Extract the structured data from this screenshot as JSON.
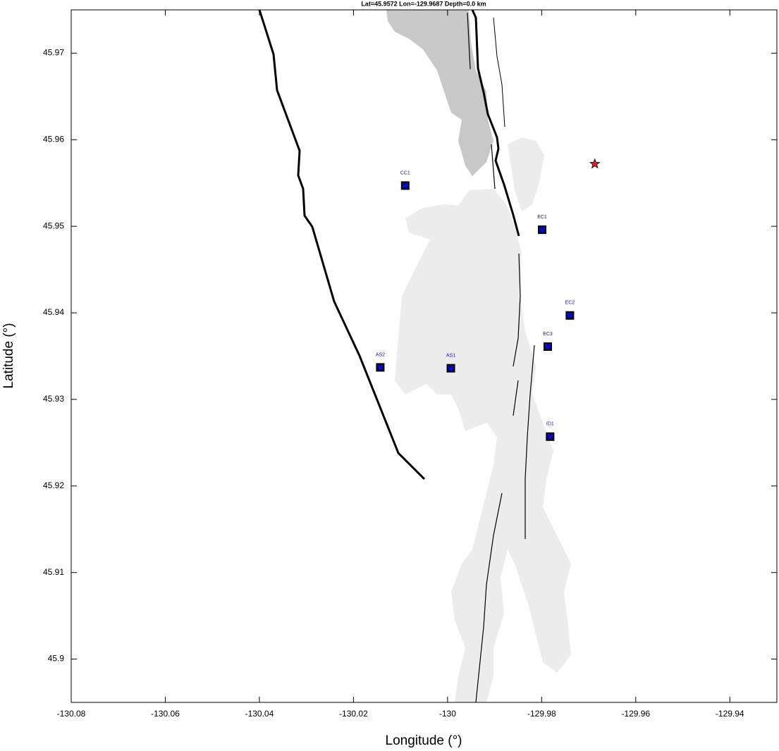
{
  "chart_data": {
    "type": "scatter",
    "title": "Lat=45.9572  Lon=-129.9687  Depth=0.0 km",
    "x_label": "Longitude (°)",
    "y_label": "Latitude (°)",
    "xlim": [
      -130.08,
      -129.93
    ],
    "ylim": [
      45.895,
      45.975
    ],
    "xticks": [
      -130.08,
      -130.06,
      -130.04,
      -130.02,
      -130,
      -129.98,
      -129.96,
      -129.94
    ],
    "yticks": [
      45.9,
      45.91,
      45.92,
      45.93,
      45.94,
      45.95,
      45.96,
      45.97
    ],
    "stations": {
      "color": "#1010c0",
      "labels": [
        "CC1",
        "EC1",
        "EC2",
        "EC3",
        "AS2",
        "AS1",
        "ID1"
      ],
      "x": [
        -130.009,
        -129.9799,
        -129.974,
        -129.9787,
        -130.0143,
        -129.9993,
        -129.9782
      ],
      "y": [
        45.9547,
        45.9496,
        45.9397,
        45.9361,
        45.9337,
        45.9336,
        45.9257
      ]
    },
    "event": {
      "x": -129.9687,
      "y": 45.9572,
      "color": "#e02020"
    }
  }
}
